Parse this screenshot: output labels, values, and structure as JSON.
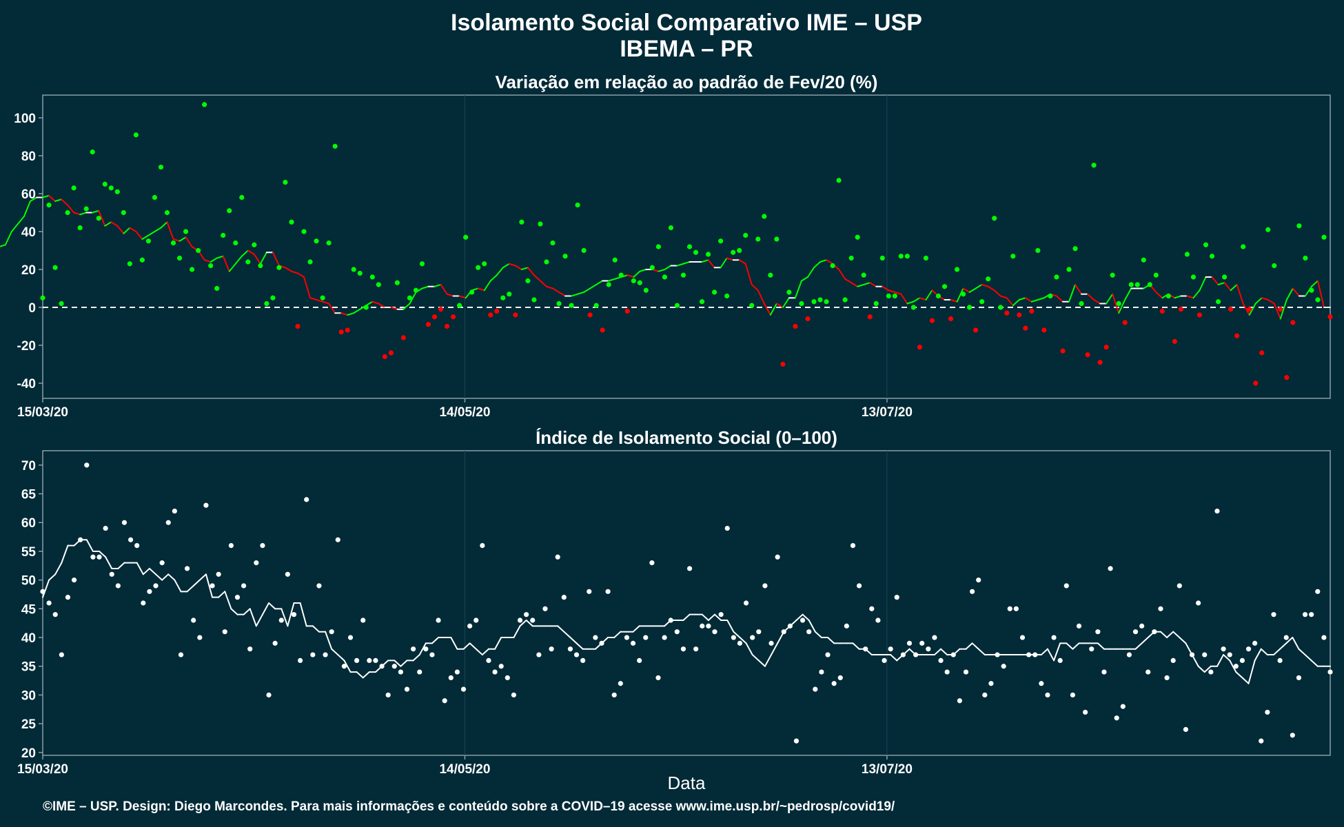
{
  "page": {
    "title_line1": "Isolamento Social Comparativo IME – USP",
    "title_line2": "IBEMA – PR",
    "footer": "©IME – USP. Design: Diego Marcondes. Para mais informações e conteúdo sobre a COVID–19 acesse www.ime.usp.br/~pedrosp/covid19/"
  },
  "colors": {
    "background": "#022a37",
    "panel_border": "#8aa0a8",
    "gridline": "#1d4452",
    "positive": "#00ff00",
    "negative": "#ff0000",
    "index": "#ffffff",
    "reference_line": "#ffffff"
  },
  "chart_data": [
    {
      "type": "scatter",
      "title": "Variação em relação ao padrão de Fev/20 (%)",
      "xlabel": "",
      "ylabel": "",
      "x_start": "2020-03-15",
      "x_end": "2020-09-14",
      "x_ticks": [
        "15/03/20",
        "14/05/20",
        "13/07/20"
      ],
      "y_ticks": [
        100,
        80,
        60,
        40,
        20,
        0,
        -20,
        -40
      ],
      "ylim": [
        -48,
        112
      ],
      "reference_line": 0,
      "legend": "none",
      "series": [
        {
          "kind": "points",
          "color_rule": "green when >= 0, red when < 0",
          "values": [
            5,
            54,
            21,
            2,
            50,
            63,
            42,
            52,
            82,
            47,
            65,
            63,
            61,
            50,
            23,
            91,
            25,
            35,
            58,
            74,
            50,
            34,
            26,
            40,
            20,
            30,
            107,
            22,
            10,
            38,
            51,
            34,
            58,
            24,
            33,
            22,
            2,
            5,
            21,
            66,
            45,
            -10,
            40,
            24,
            35,
            5,
            34,
            85,
            -13,
            -12,
            20,
            18,
            0,
            16,
            12,
            -26,
            -24,
            13,
            -16,
            5,
            9,
            23,
            -9,
            -5,
            -1,
            -10,
            -5,
            1,
            37,
            8,
            21,
            23,
            -4,
            -2,
            5,
            7,
            -4,
            45,
            14,
            4,
            44,
            24,
            34,
            2,
            27,
            1,
            54,
            30,
            -4,
            1,
            -12,
            12,
            25,
            17,
            -2,
            14,
            13,
            9,
            21,
            32,
            16,
            42,
            1,
            17,
            32,
            29,
            3,
            28,
            8,
            35,
            6,
            29,
            30,
            38,
            1,
            36,
            48,
            17,
            36,
            -30,
            8,
            -10,
            2,
            -6,
            3,
            4,
            3,
            22,
            67,
            4,
            26,
            37,
            17,
            -5,
            2,
            26,
            6,
            6,
            27,
            27,
            0,
            -21,
            26,
            -7,
            6,
            11,
            -6,
            20,
            7,
            0,
            -12,
            3,
            15,
            47,
            0,
            -3,
            27,
            -4,
            -11,
            -2,
            30,
            -12,
            6,
            16,
            -23,
            20,
            31,
            2,
            -25,
            75,
            -29,
            -21,
            17,
            2,
            -8,
            12,
            12,
            25,
            12,
            17,
            -2,
            6,
            -18,
            -1,
            28,
            16,
            -4,
            33,
            27,
            3,
            16,
            -1,
            -15,
            32,
            -1,
            -40,
            -24,
            41,
            22,
            -1,
            -37,
            -8,
            43,
            26,
            9,
            4,
            37,
            -5
          ]
        },
        {
          "kind": "moving-average",
          "color_rule": "green when rising, red when falling, white at turning points",
          "values": [
            29,
            29,
            32,
            33,
            40,
            44,
            48,
            56,
            58,
            58,
            59,
            56,
            57,
            54,
            50,
            49,
            50,
            50,
            51,
            43,
            45,
            43,
            39,
            42,
            40,
            36,
            38,
            40,
            42,
            45,
            36,
            35,
            37,
            32,
            30,
            25,
            24,
            26,
            27,
            19,
            23,
            27,
            30,
            28,
            23,
            29,
            29,
            22,
            21,
            19,
            18,
            16,
            5,
            4,
            3,
            2,
            -3,
            -3,
            -4,
            -3,
            -1,
            1,
            3,
            2,
            0,
            0,
            -1,
            -1,
            2,
            8,
            10,
            11,
            11,
            12,
            7,
            6,
            6,
            5,
            9,
            10,
            9,
            14,
            17,
            21,
            23,
            22,
            20,
            21,
            17,
            14,
            11,
            10,
            8,
            6,
            6,
            7,
            8,
            10,
            12,
            14,
            14,
            15,
            16,
            17,
            16,
            19,
            20,
            20,
            19,
            20,
            22,
            22,
            23,
            24,
            24,
            24,
            25,
            21,
            21,
            26,
            25,
            25,
            23,
            12,
            9,
            2,
            -4,
            2,
            0,
            5,
            5,
            14,
            16,
            21,
            24,
            25,
            23,
            20,
            15,
            13,
            11,
            12,
            13,
            11,
            11,
            9,
            8,
            7,
            2,
            3,
            5,
            4,
            9,
            6,
            4,
            4,
            3,
            10,
            8,
            10,
            12,
            11,
            9,
            6,
            5,
            1,
            4,
            5,
            3,
            4,
            5,
            7,
            6,
            3,
            3,
            12,
            7,
            7,
            4,
            2,
            2,
            7,
            -3,
            4,
            10,
            10,
            10,
            12,
            8,
            5,
            7,
            5,
            6,
            6,
            5,
            9,
            16,
            16,
            12,
            13,
            9,
            12,
            2,
            -4,
            2,
            5,
            4,
            2,
            -6,
            4,
            10,
            6,
            6,
            11,
            14,
            0,
            0
          ]
        }
      ]
    },
    {
      "type": "scatter",
      "title": "Índice de Isolamento Social (0–100)",
      "xlabel": "Data",
      "ylabel": "",
      "x_start": "2020-03-15",
      "x_end": "2020-09-14",
      "x_ticks": [
        "15/03/20",
        "14/05/20",
        "13/07/20"
      ],
      "y_ticks": [
        70,
        65,
        60,
        55,
        50,
        45,
        40,
        35,
        30,
        25,
        20
      ],
      "ylim": [
        19.5,
        72.5
      ],
      "legend": "none",
      "series": [
        {
          "kind": "points",
          "color": "white",
          "values": [
            48,
            46,
            44,
            37,
            47,
            50,
            57,
            70,
            54,
            54,
            59,
            51,
            49,
            60,
            57,
            56,
            46,
            48,
            49,
            53,
            60,
            62,
            37,
            52,
            43,
            40,
            63,
            49,
            51,
            41,
            56,
            47,
            49,
            38,
            53,
            56,
            30,
            39,
            43,
            51,
            44,
            36,
            64,
            37,
            49,
            37,
            41,
            57,
            35,
            40,
            36,
            43,
            36,
            36,
            35,
            30,
            35,
            34,
            31,
            38,
            34,
            38,
            37,
            43,
            29,
            33,
            34,
            31,
            42,
            43,
            56,
            36,
            34,
            35,
            33,
            30,
            43,
            44,
            43,
            37,
            45,
            38,
            54,
            47,
            38,
            37,
            36,
            48,
            40,
            39,
            48,
            30,
            32,
            40,
            39,
            36,
            40,
            53,
            33,
            40,
            43,
            41,
            38,
            52,
            38,
            42,
            42,
            41,
            44,
            59,
            40,
            39,
            46,
            40,
            41,
            49,
            39,
            54,
            41,
            42,
            22,
            43,
            41,
            31,
            34,
            37,
            32,
            33,
            42,
            56,
            49,
            38,
            45,
            43,
            36,
            38,
            47,
            37,
            39,
            37,
            39,
            38,
            40,
            36,
            34,
            37,
            29,
            34,
            48,
            50,
            30,
            32,
            37,
            35,
            45,
            45,
            40,
            37,
            37,
            32,
            30,
            40,
            36,
            49,
            30,
            42,
            27,
            38,
            41,
            34,
            52,
            26,
            28,
            37,
            41,
            42,
            34,
            41,
            45,
            33,
            36,
            49,
            24,
            37,
            46,
            37,
            34,
            62,
            38,
            37,
            35,
            36,
            38,
            39,
            22,
            27,
            44,
            36,
            40,
            23,
            33,
            44,
            44,
            48,
            40,
            34
          ]
        },
        {
          "kind": "moving-average",
          "color": "white",
          "values": [
            47,
            50,
            51,
            53,
            56,
            56,
            57,
            57,
            55,
            55,
            54,
            52,
            52,
            53,
            53,
            53,
            51,
            52,
            51,
            50,
            51,
            50,
            48,
            48,
            49,
            50,
            51,
            47,
            47,
            48,
            45,
            44,
            44,
            45,
            42,
            44,
            46,
            45,
            45,
            42,
            46,
            46,
            42,
            42,
            41,
            41,
            38,
            37,
            36,
            34,
            34,
            33,
            34,
            34,
            35,
            36,
            36,
            35,
            36,
            36,
            37,
            39,
            39,
            40,
            40,
            40,
            38,
            38,
            39,
            38,
            37,
            38,
            38,
            40,
            40,
            40,
            42,
            43,
            42,
            42,
            42,
            42,
            42,
            41,
            40,
            39,
            38,
            38,
            38,
            39,
            40,
            40,
            41,
            41,
            41,
            42,
            42,
            42,
            42,
            42,
            43,
            43,
            43,
            44,
            44,
            44,
            43,
            44,
            43,
            43,
            41,
            40,
            39,
            37,
            36,
            35,
            37,
            39,
            41,
            42,
            43,
            44,
            43,
            41,
            40,
            40,
            39,
            39,
            39,
            39,
            38,
            38,
            37,
            37,
            37,
            37,
            36,
            37,
            38,
            37,
            37,
            37,
            37,
            38,
            37,
            37,
            38,
            38,
            39,
            38,
            37,
            37,
            37,
            37,
            37,
            37,
            37,
            37,
            37,
            37,
            38,
            36,
            39,
            39,
            38,
            39,
            39,
            39,
            39,
            38,
            38,
            38,
            38,
            38,
            38,
            39,
            40,
            41,
            41,
            40,
            41,
            40,
            39,
            37,
            35,
            34,
            35,
            35,
            37,
            36,
            34,
            33,
            32,
            36,
            38,
            37,
            37,
            38,
            39,
            40,
            38,
            37,
            36,
            35,
            35,
            35
          ]
        }
      ]
    }
  ]
}
